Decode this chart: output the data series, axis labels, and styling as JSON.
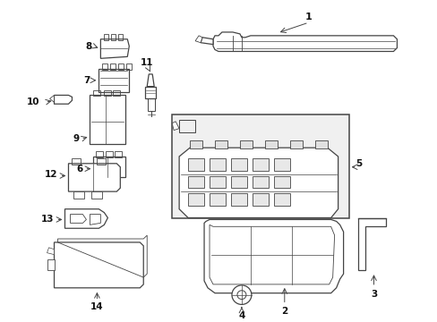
{
  "bg_color": "#ffffff",
  "line_color": "#444444",
  "label_color": "#111111",
  "figsize": [
    4.89,
    3.6
  ],
  "dpi": 100
}
